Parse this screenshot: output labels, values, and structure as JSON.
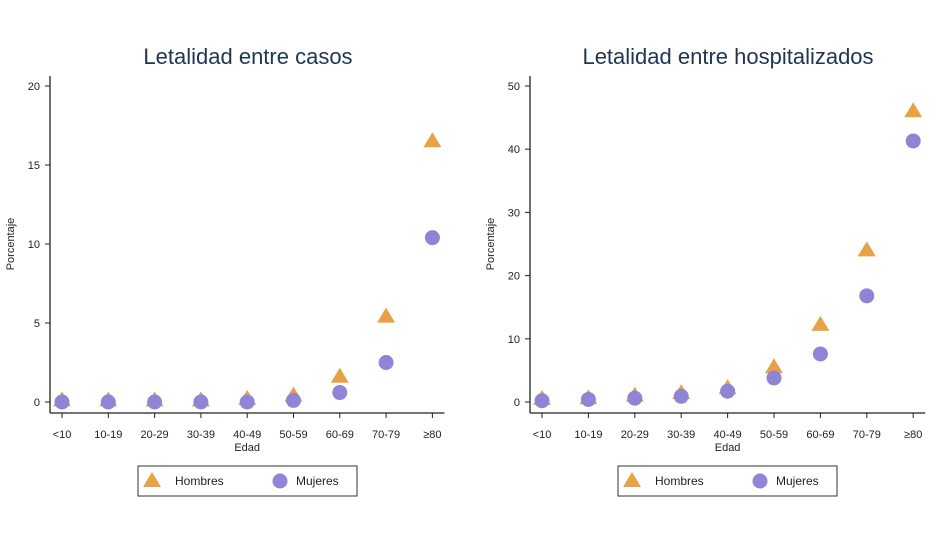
{
  "chart_data": [
    {
      "type": "scatter",
      "title": "Letalidad entre casos",
      "xlabel": "Edad",
      "ylabel": "Porcentaje",
      "categories": [
        "<10",
        "10-19",
        "20-29",
        "30-39",
        "40-49",
        "50-59",
        "60-69",
        "70-79",
        "≥80"
      ],
      "ylim": [
        0,
        20
      ],
      "yticks": [
        0,
        5,
        10,
        15,
        20
      ],
      "grid": false,
      "legend": "bottom",
      "series": [
        {
          "name": "Hombres",
          "marker": "triangle",
          "color": "#E8A245",
          "values": [
            0.1,
            0.1,
            0.1,
            0.1,
            0.2,
            0.4,
            1.6,
            5.4,
            16.5
          ]
        },
        {
          "name": "Mujeres",
          "marker": "circle",
          "color": "#8E85D6",
          "values": [
            0.0,
            0.0,
            0.0,
            0.0,
            0.0,
            0.1,
            0.6,
            2.5,
            10.4
          ]
        }
      ]
    },
    {
      "type": "scatter",
      "title": "Letalidad entre hospitalizados",
      "xlabel": "Edad",
      "ylabel": "Porcentaje",
      "categories": [
        "<10",
        "10-19",
        "20-29",
        "30-39",
        "40-49",
        "50-59",
        "60-69",
        "70-79",
        "≥80"
      ],
      "ylim": [
        0,
        50
      ],
      "yticks": [
        0,
        10,
        20,
        30,
        40,
        50
      ],
      "grid": false,
      "legend": "bottom",
      "series": [
        {
          "name": "Hombres",
          "marker": "triangle",
          "color": "#E8A245",
          "values": [
            0.5,
            0.6,
            1.0,
            1.4,
            2.2,
            5.5,
            12.2,
            24.0,
            46.0
          ]
        },
        {
          "name": "Mujeres",
          "marker": "circle",
          "color": "#8E85D6",
          "values": [
            0.2,
            0.4,
            0.6,
            0.9,
            1.7,
            3.8,
            7.6,
            16.8,
            41.3
          ]
        }
      ]
    }
  ]
}
